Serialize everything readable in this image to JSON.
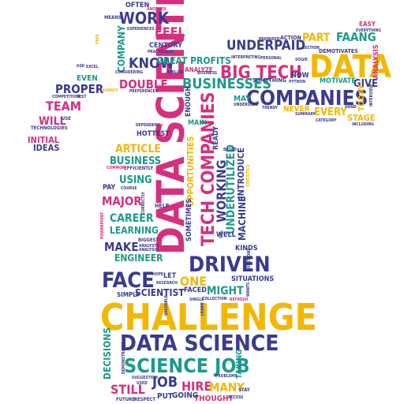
{
  "colors": {
    "magenta": "#d62f7e",
    "teal": "#1c9a8b",
    "navy": "#3b3a8f",
    "gold": "#f2b705"
  },
  "words": {
    "w1": "DATA SCIENTIST",
    "w2": "CHALLENGE",
    "w3": "DATA SCIENCE",
    "w4": "DATA",
    "w5": "COMPANIES",
    "w6": "SCIENCE JOB",
    "w7": "BIG TECH",
    "w8": "FACE",
    "w9": "DRIVEN",
    "w10": "TECH COMPANIES",
    "w11": "BUSINESSES",
    "w12": "WORK",
    "w13": "KNOW",
    "w14": "FEEL",
    "w15": "UNDERPAID",
    "w16": "PART",
    "w17": "FAANG",
    "w18": "COMPANY",
    "w19": "GREAT PROFITS",
    "w20": "DOUBLE",
    "w21": "PROPER",
    "w22": "TEAM",
    "w23": "WILL",
    "w24": "INITIAL",
    "w25": "IDEAS",
    "w26": "EVEN",
    "w27": "ARTICLE",
    "w28": "BUSINESS",
    "w29": "USING",
    "w30": "MAJOR",
    "w31": "CAREER",
    "w32": "LEARNING",
    "w33": "MAKE",
    "w34": "ENGINEER",
    "w35": "SCIENTIST",
    "w36": "ONE",
    "w37": "MIGHT",
    "w38": "HIRE",
    "w39": "JOB",
    "w40": "MANY",
    "w41": "STILL",
    "w42": "DECISIONS",
    "w43": "WORKING",
    "w44": "UNDERUTILIZED",
    "w45": "MACHINE",
    "w46": "INTRODUCE",
    "w47": "EVERY",
    "w48": "STAGE",
    "w49": "GIVE",
    "w50": "TODAY",
    "w51": "ANALYSIS",
    "w52": "NOW",
    "w53": "MOTIVATE",
    "w54": "NEVER",
    "w55": "MAY",
    "w56": "HOTTEST",
    "w57": "OPPORTUNITIES",
    "w58": "ENOUGH",
    "w59": "MAIN",
    "w60": "READY",
    "w61": "SOMETIMES",
    "w62": "WELL",
    "w63": "KINDS",
    "w64": "SITUATIONS",
    "w65": "LET",
    "w66": "FACED",
    "w67": "SIMPLY",
    "w68": "THOUGHT",
    "w69": "GOING",
    "w70": "PUT",
    "w71": "TAKING",
    "w72": "OFTEN",
    "w73": "CENTURY",
    "w74": "ACTION",
    "w75": "EASY",
    "w76": "PAY",
    "w77": "HELP",
    "w78": "MEANS",
    "w79": "ANOTHER",
    "w80": "FREE",
    "w81": "EXPERIENCES",
    "w82": "PRACTICALLY",
    "w83": "ASK",
    "w84": "EXCEL",
    "w85": "ALWAYS",
    "w86": "APPLIED",
    "w87": "ANALYZE",
    "w88": "INTERPRETING",
    "w89": "PREPARED",
    "w90": "DEMOTIVATES",
    "w91": "SOMETHING",
    "w92": "PYTHON",
    "w93": "TRENDY",
    "w94": "UNDERUSED",
    "w95": "CATEGORY",
    "w96": "INCLUDING",
    "w97": "INTERVIEW",
    "w98": "HAND",
    "w99": "SUMMARY",
    "w100": "EVERYTHING",
    "w101": "SECTION",
    "w102": "SOLVE",
    "w103": "PERSONAL",
    "w104": "CONSIDERING",
    "w105": "PREFERENCES",
    "w106": "TEST",
    "w107": "COMPETITION",
    "w108": "USE",
    "w109": "TECHNOLOGIES",
    "w110": "DEPENDENT",
    "w111": "EFFICIENTLY",
    "w112": "COMMON",
    "w113": "COURSE",
    "w114": "CORRECTLY",
    "w115": "POWERPOINT",
    "w116": "BIGGEST",
    "w117": "ANALYSTS",
    "w118": "HOPE",
    "w119": "RESEARCH",
    "w120": "VALUABLE",
    "w121": "LEARN",
    "w122": "SINGLE",
    "w123": "COLLECTION",
    "w124": "REFRESH",
    "w125": "WANTS",
    "w126": "SUGGESTION",
    "w127": "DEMONSTRATED",
    "w128": "USED",
    "w129": "FUTURE",
    "w130": "RESPECT",
    "w131": "STAY",
    "w132": "ACCESS",
    "w133": "PROBLEMS",
    "w134": "QUESTIONS",
    "w135": "BASED",
    "w136": "STATISTICS",
    "w137": "SQL",
    "w138": "BUSINESS",
    "w139": "ANALYSIS"
  }
}
